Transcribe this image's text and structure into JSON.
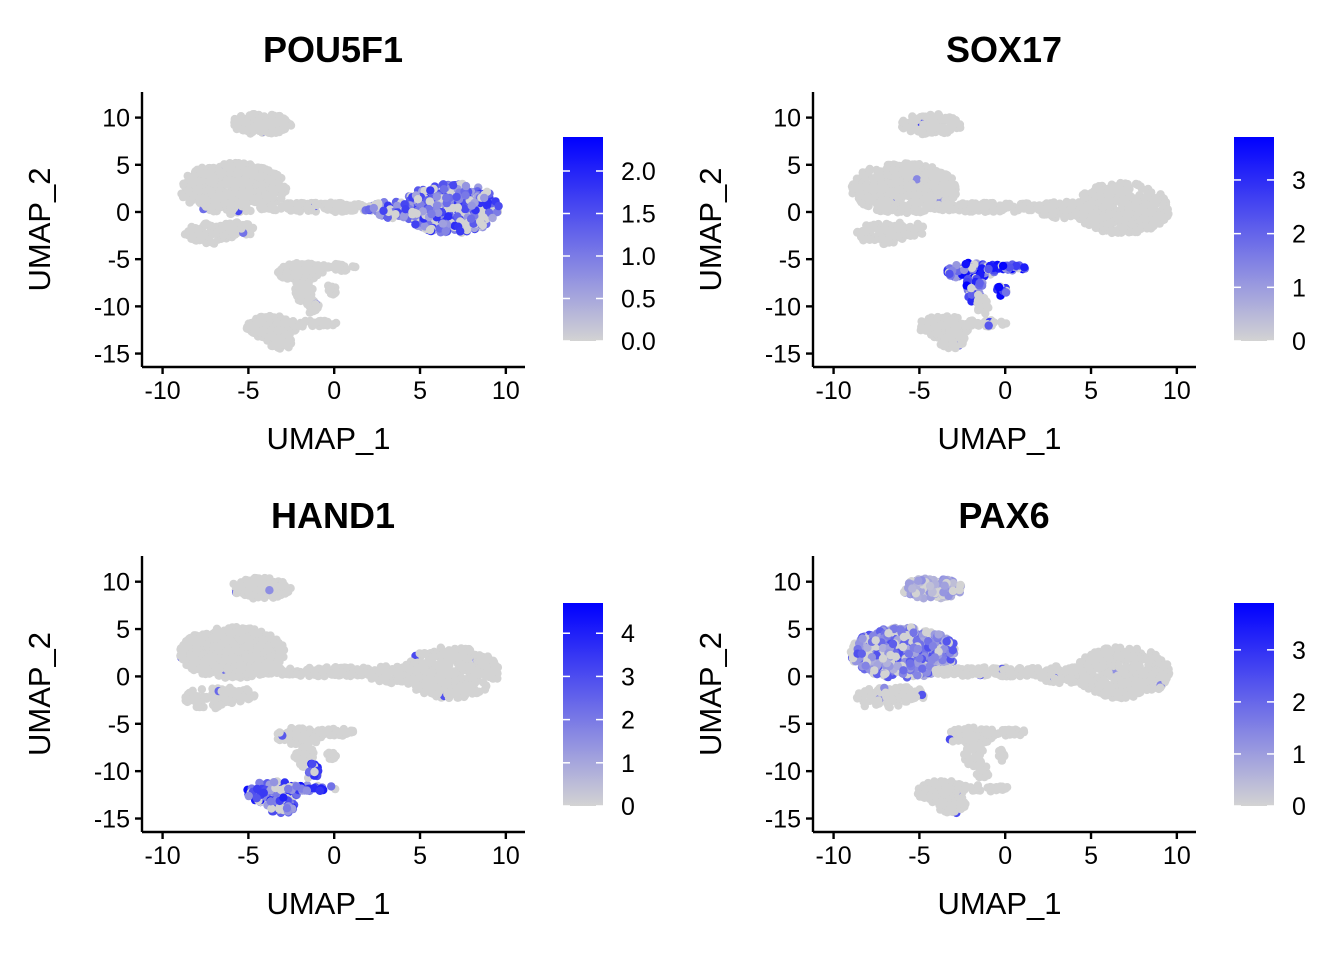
{
  "chart_data": [
    {
      "type": "scatter",
      "title": "POU5F1",
      "xlabel": "UMAP_1",
      "ylabel": "UMAP_2",
      "xticks": [
        -10,
        -5,
        0,
        5,
        10
      ],
      "xtick_labels": [
        "-10",
        "-5",
        "0",
        "5",
        "10"
      ],
      "yticks": [
        10,
        5,
        0,
        -5,
        -10,
        -15
      ],
      "ytick_labels": [
        "10",
        "5",
        "0",
        "-5",
        "-10",
        "-15"
      ],
      "xlim": [
        -10.5,
        11
      ],
      "ylim": [
        -16,
        12.5
      ],
      "grid": false,
      "colorbar": {
        "low_color": "#d3d3d3",
        "high_color": "#0000ff",
        "range": [
          0,
          2.4
        ],
        "ticks": [
          0.0,
          0.5,
          1.0,
          1.5,
          2.0
        ],
        "tick_labels": [
          "0.0",
          "0.5",
          "1.0",
          "1.5",
          "2.0"
        ]
      },
      "expression_regions": [
        {
          "cluster": "right",
          "level": 0.5
        }
      ]
    },
    {
      "type": "scatter",
      "title": "SOX17",
      "xlabel": "UMAP_1",
      "ylabel": "UMAP_2",
      "xticks": [
        -10,
        -5,
        0,
        5,
        10
      ],
      "xtick_labels": [
        "-10",
        "-5",
        "0",
        "5",
        "10"
      ],
      "yticks": [
        10,
        5,
        0,
        -5,
        -10,
        -15
      ],
      "ytick_labels": [
        "10",
        "5",
        "0",
        "-5",
        "-10",
        "-15"
      ],
      "xlim": [
        -10.5,
        11
      ],
      "ylim": [
        -16,
        12.5
      ],
      "grid": false,
      "colorbar": {
        "low_color": "#d3d3d3",
        "high_color": "#0000ff",
        "range": [
          0,
          3.8
        ],
        "ticks": [
          0,
          1,
          2,
          3
        ],
        "tick_labels": [
          "0",
          "1",
          "2",
          "3"
        ]
      },
      "expression_regions": [
        {
          "cluster": "bottom_upper",
          "level": 0.65
        }
      ]
    },
    {
      "type": "scatter",
      "title": "HAND1",
      "xlabel": "UMAP_1",
      "ylabel": "UMAP_2",
      "xticks": [
        -10,
        -5,
        0,
        5,
        10
      ],
      "xtick_labels": [
        "-10",
        "-5",
        "0",
        "5",
        "10"
      ],
      "yticks": [
        10,
        5,
        0,
        -5,
        -10,
        -15
      ],
      "ytick_labels": [
        "10",
        "5",
        "0",
        "-5",
        "-10",
        "-15"
      ],
      "xlim": [
        -10.5,
        11
      ],
      "ylim": [
        -16,
        12.5
      ],
      "grid": false,
      "colorbar": {
        "low_color": "#d3d3d3",
        "high_color": "#0000ff",
        "range": [
          0,
          4.7
        ],
        "ticks": [
          0,
          1,
          2,
          3,
          4
        ],
        "tick_labels": [
          "0",
          "1",
          "2",
          "3",
          "4"
        ]
      },
      "expression_regions": [
        {
          "cluster": "bottom_lower",
          "level": 0.6
        }
      ]
    },
    {
      "type": "scatter",
      "title": "PAX6",
      "xlabel": "UMAP_1",
      "ylabel": "UMAP_2",
      "xticks": [
        -10,
        -5,
        0,
        5,
        10
      ],
      "xtick_labels": [
        "-10",
        "-5",
        "0",
        "5",
        "10"
      ],
      "yticks": [
        10,
        5,
        0,
        -5,
        -10,
        -15
      ],
      "ytick_labels": [
        "10",
        "5",
        "0",
        "-5",
        "-10",
        "-15"
      ],
      "xlim": [
        -10.5,
        11
      ],
      "ylim": [
        -16,
        12.5
      ],
      "grid": false,
      "colorbar": {
        "low_color": "#d3d3d3",
        "high_color": "#0000ff",
        "range": [
          0,
          3.9
        ],
        "ticks": [
          0,
          1,
          2,
          3
        ],
        "tick_labels": [
          "0",
          "1",
          "2",
          "3"
        ]
      },
      "expression_regions": [
        {
          "cluster": "left_main",
          "level": 0.4
        },
        {
          "cluster": "top_small",
          "level": 0.2
        }
      ]
    }
  ]
}
